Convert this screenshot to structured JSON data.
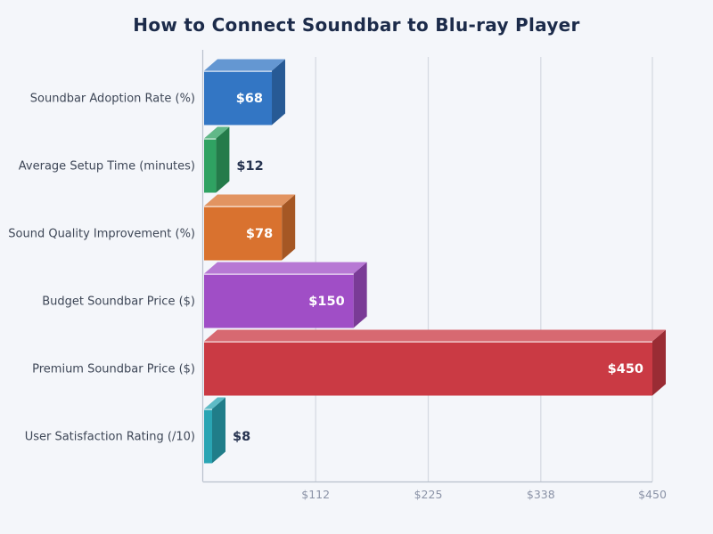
{
  "title": {
    "text": "How to Connect Soundbar to Blu-ray Player"
  },
  "chart_data": {
    "type": "bar",
    "orientation": "horizontal",
    "effect": "3d-extruded",
    "title": "How to Connect Soundbar to Blu-ray Player",
    "categories": [
      "Soundbar Adoption Rate (%)",
      "Average Setup Time (minutes)",
      "Sound Quality Improvement (%)",
      "Budget Soundbar Price ($)",
      "Premium Soundbar Price ($)",
      "User Satisfaction Rating (/10)"
    ],
    "values": [
      68,
      12,
      78,
      150,
      450,
      8
    ],
    "value_labels": [
      "$68",
      "$12",
      "$78",
      "$150",
      "$450",
      "$8"
    ],
    "bar_colors": [
      "#3376c4",
      "#2fa262",
      "#d9722f",
      "#a04ec6",
      "#ca3a44",
      "#2aa5b4"
    ],
    "xlabel": "",
    "ylabel": "",
    "xlim": [
      0,
      450
    ],
    "x_ticks": [
      {
        "value": 112,
        "label": "$112"
      },
      {
        "value": 225,
        "label": "$225"
      },
      {
        "value": 338,
        "label": "$338"
      },
      {
        "value": 450,
        "label": "$450"
      }
    ],
    "grid": true,
    "legend": false
  },
  "theme": {
    "page_background": "#f4f6fa",
    "title_color": "#1c2b4a",
    "category_label_color": "#3e4757",
    "tick_label_color": "#8b93a7",
    "value_label_inside_color": "#ffffff",
    "value_label_outside_color": "#263350",
    "gridline_color": "#d6dae2",
    "axis_line_color": "#b9c0cc",
    "bar_top_edge_highlight": "rgba(255,255,255,0.85)"
  }
}
